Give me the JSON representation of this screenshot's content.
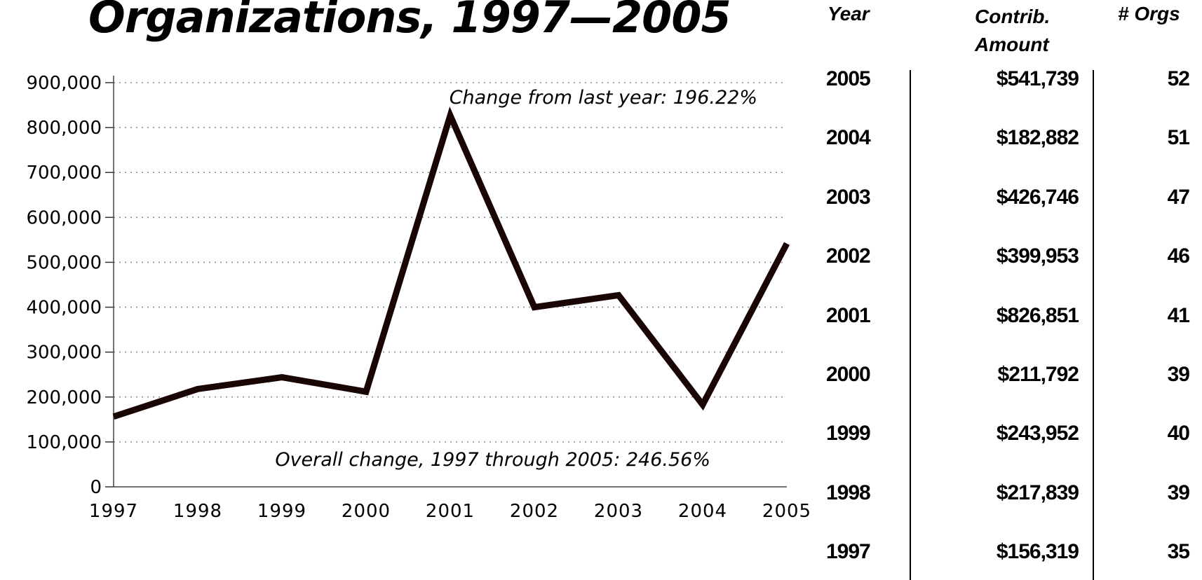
{
  "title": "Organizations, 1997—2005",
  "chart_data": {
    "type": "line",
    "x": [
      "1997",
      "1998",
      "1999",
      "2000",
      "2001",
      "2002",
      "2003",
      "2004",
      "2005"
    ],
    "series": [
      {
        "values": [
          156319,
          217839,
          243952,
          211792,
          826851,
          399953,
          426746,
          182882,
          541739
        ]
      }
    ],
    "ylim": [
      0,
      900000
    ],
    "yticks": [
      "0",
      "100,000",
      "200,000",
      "300,000",
      "400,000",
      "500,000",
      "600,000",
      "700,000",
      "800,000",
      "900,000"
    ],
    "grid": true,
    "line_color": "#1a0505",
    "annotations": {
      "last_year": "Change from last year: 196.22%",
      "overall": "Overall change, 1997 through 2005: 246.56%"
    }
  },
  "table": {
    "headers": {
      "year": "Year",
      "amount_line1": "Contrib.",
      "amount_line2": "Amount",
      "orgs": "# Orgs"
    },
    "rows": [
      {
        "year": "2005",
        "amount": "$541,739",
        "orgs": "52"
      },
      {
        "year": "2004",
        "amount": "$182,882",
        "orgs": "51"
      },
      {
        "year": "2003",
        "amount": "$426,746",
        "orgs": "47"
      },
      {
        "year": "2002",
        "amount": "$399,953",
        "orgs": "46"
      },
      {
        "year": "2001",
        "amount": "$826,851",
        "orgs": "41"
      },
      {
        "year": "2000",
        "amount": "$211,792",
        "orgs": "39"
      },
      {
        "year": "1999",
        "amount": "$243,952",
        "orgs": "40"
      },
      {
        "year": "1998",
        "amount": "$217,839",
        "orgs": "39"
      },
      {
        "year": "1997",
        "amount": "$156,319",
        "orgs": "35"
      }
    ]
  }
}
